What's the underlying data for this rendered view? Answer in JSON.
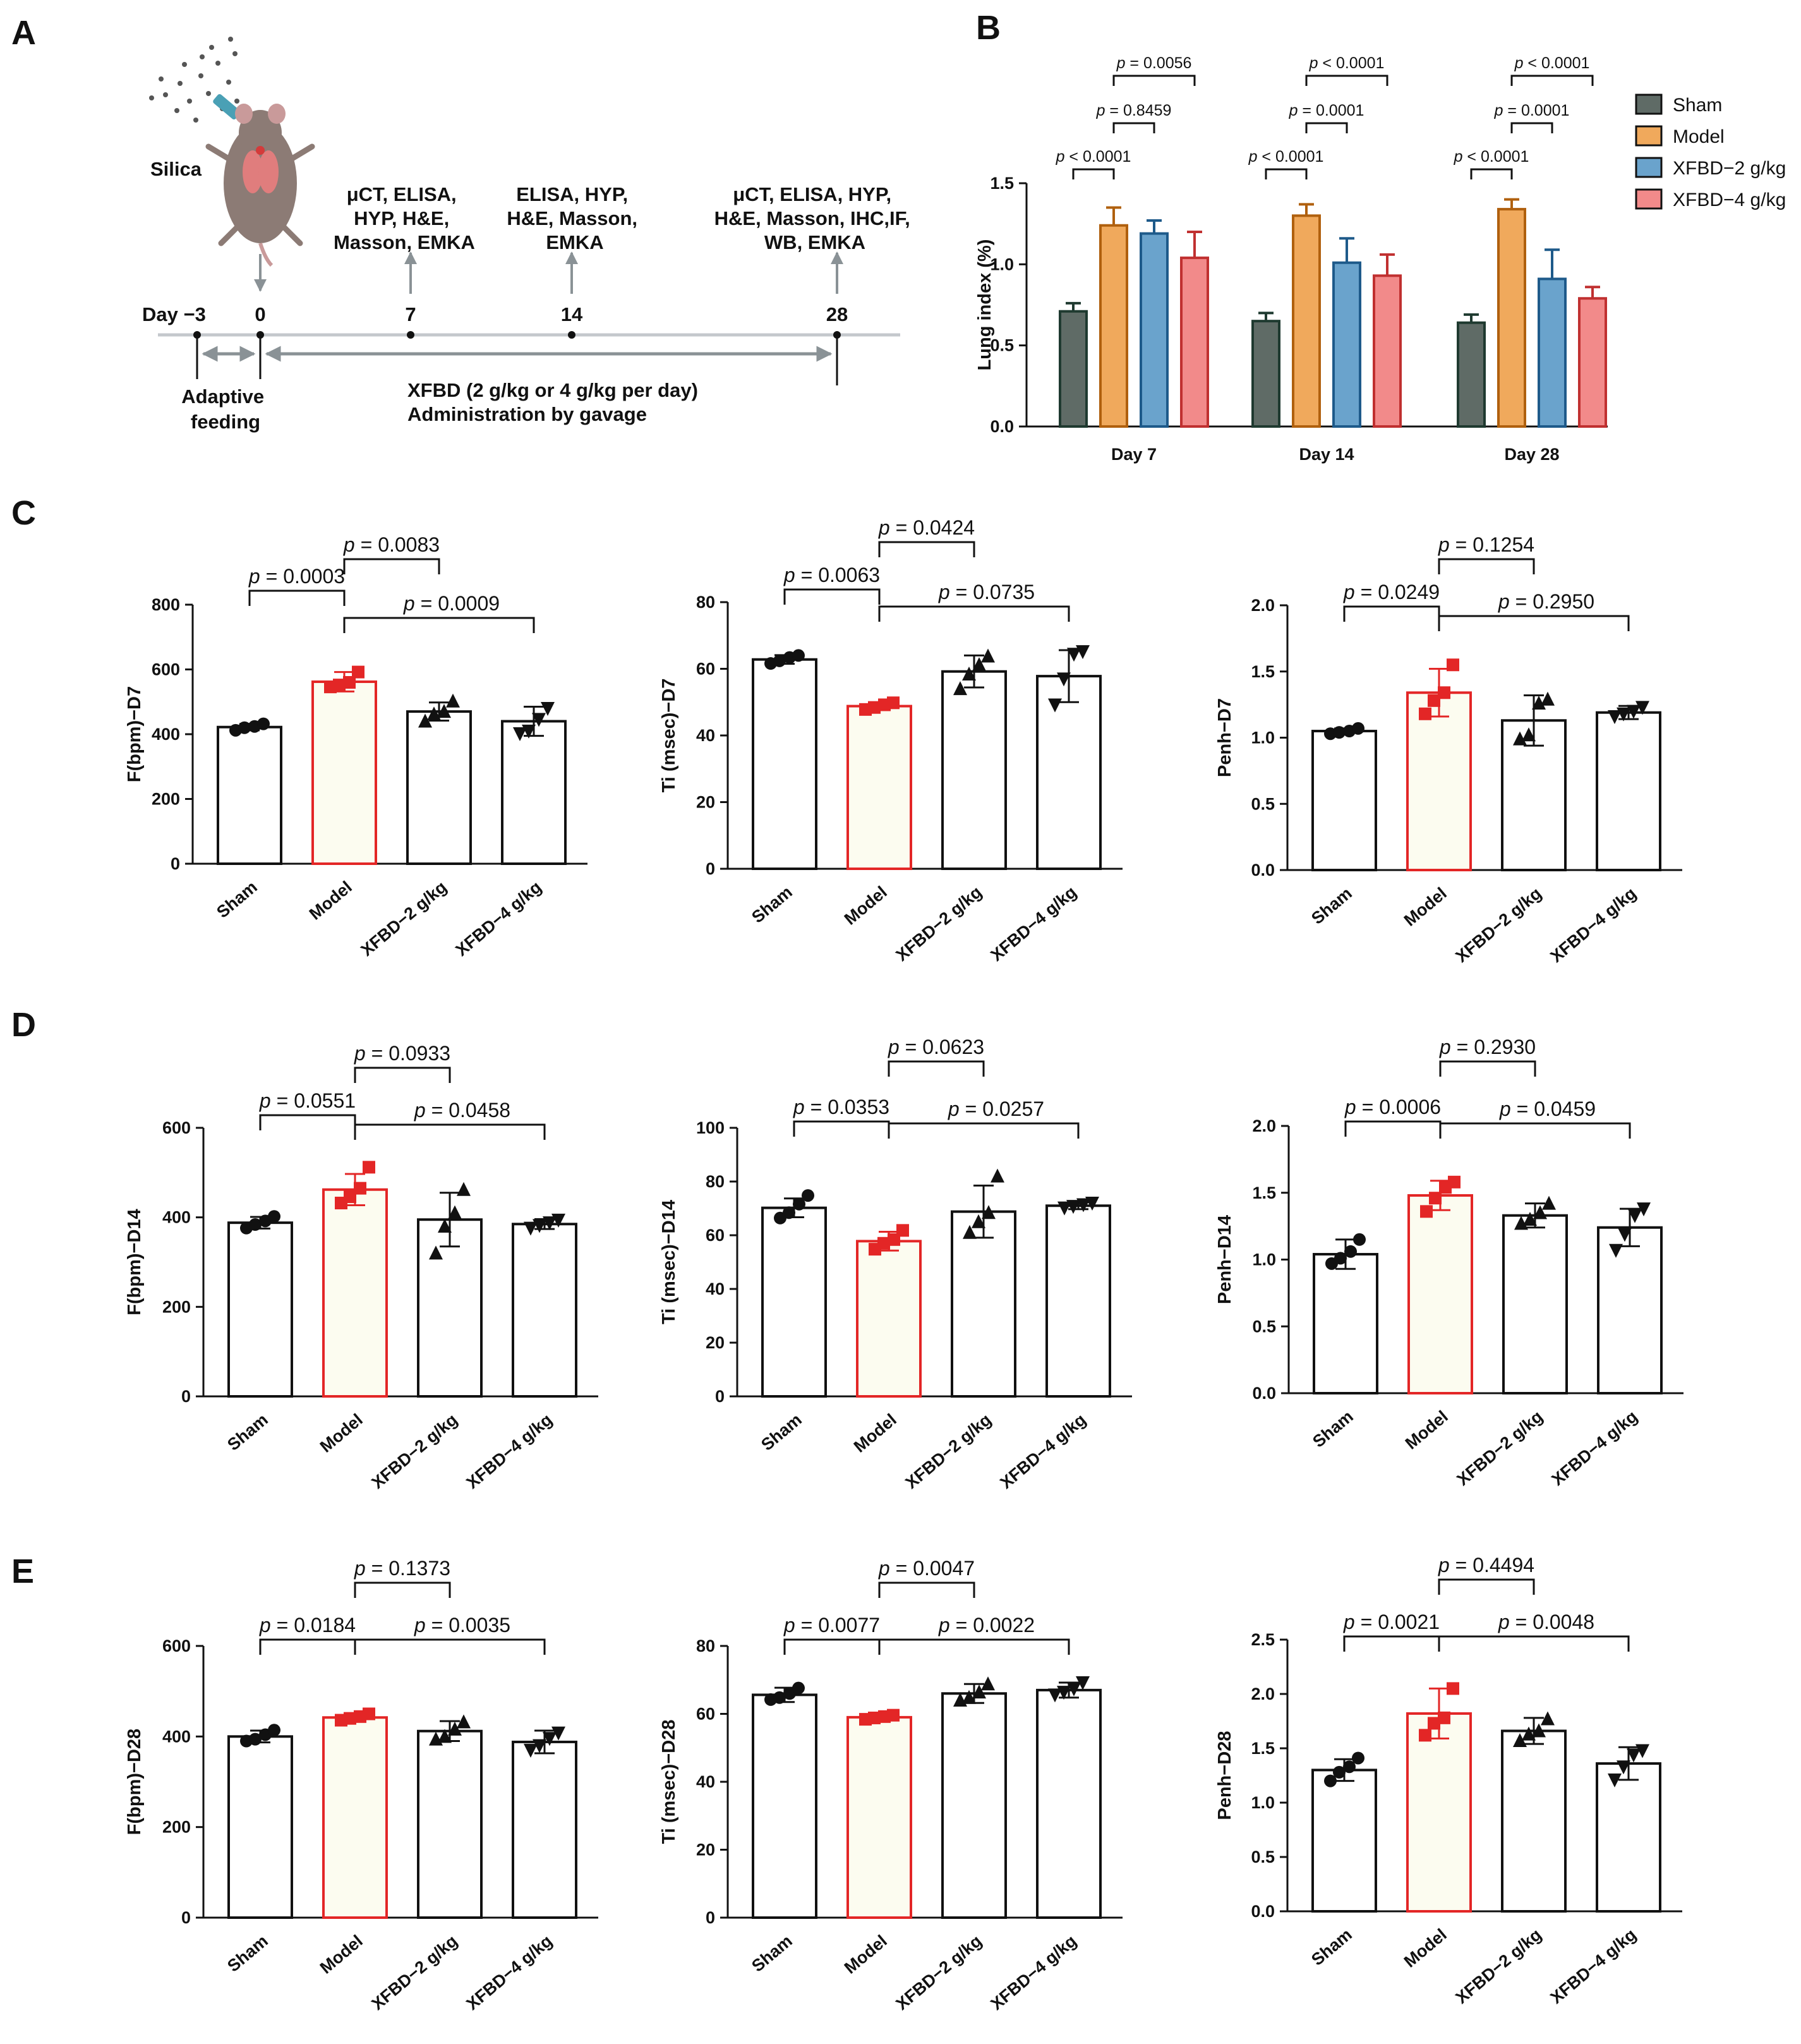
{
  "panels": {
    "A": "A",
    "B": "B",
    "C": "C",
    "D": "D",
    "E": "E"
  },
  "timeline": {
    "silica_label": "Silica",
    "day_prefix": "Day −3",
    "days": [
      "0",
      "7",
      "14",
      "28"
    ],
    "assays": {
      "d7": [
        "μCT, ELISA,",
        "HYP, H&E,",
        "Masson, EMKA"
      ],
      "d14": [
        "ELISA, HYP,",
        "H&E, Masson,",
        "EMKA"
      ],
      "d28": [
        "μCT, ELISA, HYP,",
        "H&E, Masson, IHC,IF,",
        "WB, EMKA"
      ]
    },
    "adaptive": [
      "Adaptive",
      "feeding"
    ],
    "treatment": [
      "XFBD (2 g/kg or 4 g/kg per day)",
      "Administration by  gavage"
    ]
  },
  "colors": {
    "sham": "#5f6b66",
    "model": "#f0a95c",
    "xfbd2": "#6aa3cc",
    "xfbd4": "#f28a8a",
    "model_red": "#e32626",
    "model_fill": "#fcfcf0"
  },
  "chart_data": [
    {
      "id": "B",
      "type": "bar",
      "title": "",
      "ylabel": "Lung index (%)",
      "ylim": [
        0,
        1.5
      ],
      "yticks": [
        "0.0",
        "0.5",
        "1.0",
        "1.5"
      ],
      "groups": [
        "Day 7",
        "Day 14",
        "Day 28"
      ],
      "legend": [
        "Sham",
        "Model",
        "XFBD−2 g/kg",
        "XFBD−4 g/kg"
      ],
      "series": [
        {
          "name": "Sham",
          "values": [
            0.71,
            0.65,
            0.64
          ],
          "err": [
            0.05,
            0.05,
            0.05
          ]
        },
        {
          "name": "Model",
          "values": [
            1.24,
            1.3,
            1.34
          ],
          "err": [
            0.11,
            0.07,
            0.06
          ]
        },
        {
          "name": "XFBD−2 g/kg",
          "values": [
            1.19,
            1.01,
            0.91
          ],
          "err": [
            0.08,
            0.15,
            0.18
          ]
        },
        {
          "name": "XFBD−4 g/kg",
          "values": [
            1.04,
            0.93,
            0.79
          ],
          "err": [
            0.16,
            0.13,
            0.07
          ]
        }
      ],
      "pvalues": [
        [
          "p < 0.0001",
          "p = 0.8459",
          "p = 0.0056"
        ],
        [
          "p < 0.0001",
          "p = 0.0001",
          "p < 0.0001"
        ],
        [
          "p < 0.0001",
          "p = 0.0001",
          "p < 0.0001"
        ]
      ]
    },
    {
      "id": "C1",
      "type": "bar",
      "ylabel": "F(bpm)−D7",
      "ylim": [
        0,
        800
      ],
      "yticks": [
        "0",
        "200",
        "400",
        "600",
        "800"
      ],
      "categories": [
        "Sham",
        "Model",
        "XFBD−2 g/kg",
        "XFBD−4 g/kg"
      ],
      "values": [
        422,
        562,
        470,
        440
      ],
      "err": [
        10,
        30,
        28,
        45
      ],
      "points": [
        [
          412,
          420,
          424,
          432
        ],
        [
          546,
          552,
          560,
          592
        ],
        [
          440,
          462,
          470,
          502
        ],
        [
          402,
          410,
          446,
          480
        ]
      ],
      "pvalues": [
        "p = 0.0003",
        "p = 0.0083",
        "p = 0.0009"
      ]
    },
    {
      "id": "C2",
      "type": "bar",
      "ylabel": "Ti (msec)−D7",
      "ylim": [
        0,
        80
      ],
      "yticks": [
        "0",
        "20",
        "40",
        "60",
        "80"
      ],
      "categories": [
        "Sham",
        "Model",
        "XFBD−2 g/kg",
        "XFBD−4 g/kg"
      ],
      "values": [
        62.8,
        48.8,
        59.2,
        57.8
      ],
      "err": [
        1.3,
        1.1,
        4.8,
        7.8
      ],
      "points": [
        [
          61.6,
          62.4,
          63.4,
          64.0
        ],
        [
          47.8,
          48.4,
          49.2,
          49.8
        ],
        [
          54.0,
          58.4,
          61.2,
          63.8
        ],
        [
          49.2,
          57.0,
          64.4,
          65.2
        ]
      ],
      "pvalues": [
        "p = 0.0063",
        "p = 0.0424",
        "p = 0.0735"
      ]
    },
    {
      "id": "C3",
      "type": "bar",
      "ylabel": "Penh−D7",
      "ylim": [
        0,
        2.0
      ],
      "yticks": [
        "0.0",
        "0.5",
        "1.0",
        "1.5",
        "2.0"
      ],
      "categories": [
        "Sham",
        "Model",
        "XFBD−2 g/kg",
        "XFBD−4 g/kg"
      ],
      "values": [
        1.05,
        1.34,
        1.13,
        1.19
      ],
      "err": [
        0.02,
        0.18,
        0.19,
        0.05
      ],
      "points": [
        [
          1.03,
          1.04,
          1.05,
          1.07
        ],
        [
          1.18,
          1.28,
          1.34,
          1.55
        ],
        [
          0.99,
          1.02,
          1.26,
          1.29
        ],
        [
          1.16,
          1.18,
          1.2,
          1.23
        ]
      ],
      "pvalues": [
        "p = 0.0249",
        "p = 0.1254",
        "p = 0.2950"
      ]
    },
    {
      "id": "D1",
      "type": "bar",
      "ylabel": "F(bpm)−D14",
      "ylim": [
        0,
        600
      ],
      "yticks": [
        "0",
        "200",
        "400",
        "600"
      ],
      "categories": [
        "Sham",
        "Model",
        "XFBD−2 g/kg",
        "XFBD−4 g/kg"
      ],
      "values": [
        388,
        462,
        395,
        385
      ],
      "err": [
        13,
        35,
        60,
        11
      ],
      "points": [
        [
          376,
          384,
          392,
          402
        ],
        [
          432,
          446,
          465,
          512
        ],
        [
          320,
          380,
          410,
          462
        ],
        [
          376,
          382,
          388,
          394
        ]
      ],
      "pvalues": [
        "p = 0.0551",
        "p = 0.0933",
        "p = 0.0458"
      ]
    },
    {
      "id": "D2",
      "type": "bar",
      "ylabel": "Ti (msec)−D14",
      "ylim": [
        0,
        100
      ],
      "yticks": [
        "0",
        "20",
        "40",
        "60",
        "80",
        "100"
      ],
      "categories": [
        "Sham",
        "Model",
        "XFBD−2 g/kg",
        "XFBD−4 g/kg"
      ],
      "values": [
        70.2,
        57.8,
        68.8,
        71.0
      ],
      "err": [
        3.5,
        3.5,
        9.7,
        1.3
      ],
      "points": [
        [
          66.4,
          68.4,
          71.6,
          74.8
        ],
        [
          54.8,
          57.0,
          58.4,
          61.8
        ],
        [
          61.0,
          65.0,
          68.4,
          82.0
        ],
        [
          70.2,
          70.8,
          71.4,
          72.0
        ]
      ],
      "pvalues": [
        "p = 0.0353",
        "p = 0.0623",
        "p = 0.0257"
      ]
    },
    {
      "id": "D3",
      "type": "bar",
      "ylabel": "Penh−D14",
      "ylim": [
        0,
        2.0
      ],
      "yticks": [
        "0.0",
        "0.5",
        "1.0",
        "1.5",
        "2.0"
      ],
      "categories": [
        "Sham",
        "Model",
        "XFBD−2 g/kg",
        "XFBD−4 g/kg"
      ],
      "values": [
        1.04,
        1.48,
        1.33,
        1.24
      ],
      "err": [
        0.11,
        0.11,
        0.09,
        0.14
      ],
      "points": [
        [
          0.97,
          1.01,
          1.06,
          1.15
        ],
        [
          1.36,
          1.46,
          1.54,
          1.58
        ],
        [
          1.27,
          1.3,
          1.35,
          1.42
        ],
        [
          1.07,
          1.19,
          1.33,
          1.38
        ]
      ],
      "pvalues": [
        "p = 0.0006",
        "p = 0.2930",
        "p = 0.0459"
      ]
    },
    {
      "id": "E1",
      "type": "bar",
      "ylabel": "F(bpm)−D28",
      "ylim": [
        0,
        600
      ],
      "yticks": [
        "0",
        "200",
        "400",
        "600"
      ],
      "categories": [
        "Sham",
        "Model",
        "XFBD−2 g/kg",
        "XFBD−4 g/kg"
      ],
      "values": [
        400,
        442,
        412,
        388
      ],
      "err": [
        13,
        8,
        22,
        25
      ],
      "points": [
        [
          390,
          394,
          404,
          414
        ],
        [
          436,
          440,
          444,
          450
        ],
        [
          394,
          400,
          416,
          432
        ],
        [
          370,
          380,
          396,
          408
        ]
      ],
      "pvalues": [
        "p = 0.0184",
        "p = 0.1373",
        "p = 0.0035"
      ]
    },
    {
      "id": "E2",
      "type": "bar",
      "ylabel": "Ti (msec)−D28",
      "ylim": [
        0,
        80
      ],
      "yticks": [
        "0",
        "20",
        "40",
        "60",
        "80"
      ],
      "categories": [
        "Sham",
        "Model",
        "XFBD−2 g/kg",
        "XFBD−4 g/kg"
      ],
      "values": [
        65.6,
        59.0,
        66.0,
        67.0
      ],
      "err": [
        2.1,
        0.7,
        2.8,
        2.2
      ],
      "points": [
        [
          64.2,
          64.8,
          66.0,
          67.6
        ],
        [
          58.4,
          58.8,
          59.2,
          59.6
        ],
        [
          64.0,
          64.8,
          66.4,
          68.8
        ],
        [
          65.6,
          66.4,
          67.4,
          69.2
        ]
      ],
      "pvalues": [
        "p = 0.0077",
        "p = 0.0047",
        "p = 0.0022"
      ]
    },
    {
      "id": "E3",
      "type": "bar",
      "ylabel": "Penh−D28",
      "ylim": [
        0,
        2.5
      ],
      "yticks": [
        "0.0",
        "0.5",
        "1.0",
        "1.5",
        "2.0",
        "2.5"
      ],
      "categories": [
        "Sham",
        "Model",
        "XFBD−2 g/kg",
        "XFBD−4 g/kg"
      ],
      "values": [
        1.3,
        1.82,
        1.66,
        1.36
      ],
      "err": [
        0.1,
        0.23,
        0.12,
        0.15
      ],
      "points": [
        [
          1.2,
          1.28,
          1.33,
          1.41
        ],
        [
          1.62,
          1.73,
          1.78,
          2.05
        ],
        [
          1.57,
          1.63,
          1.66,
          1.77
        ],
        [
          1.21,
          1.33,
          1.44,
          1.48
        ]
      ],
      "pvalues": [
        "p = 0.0021",
        "p = 0.4494",
        "p = 0.0048"
      ]
    }
  ]
}
